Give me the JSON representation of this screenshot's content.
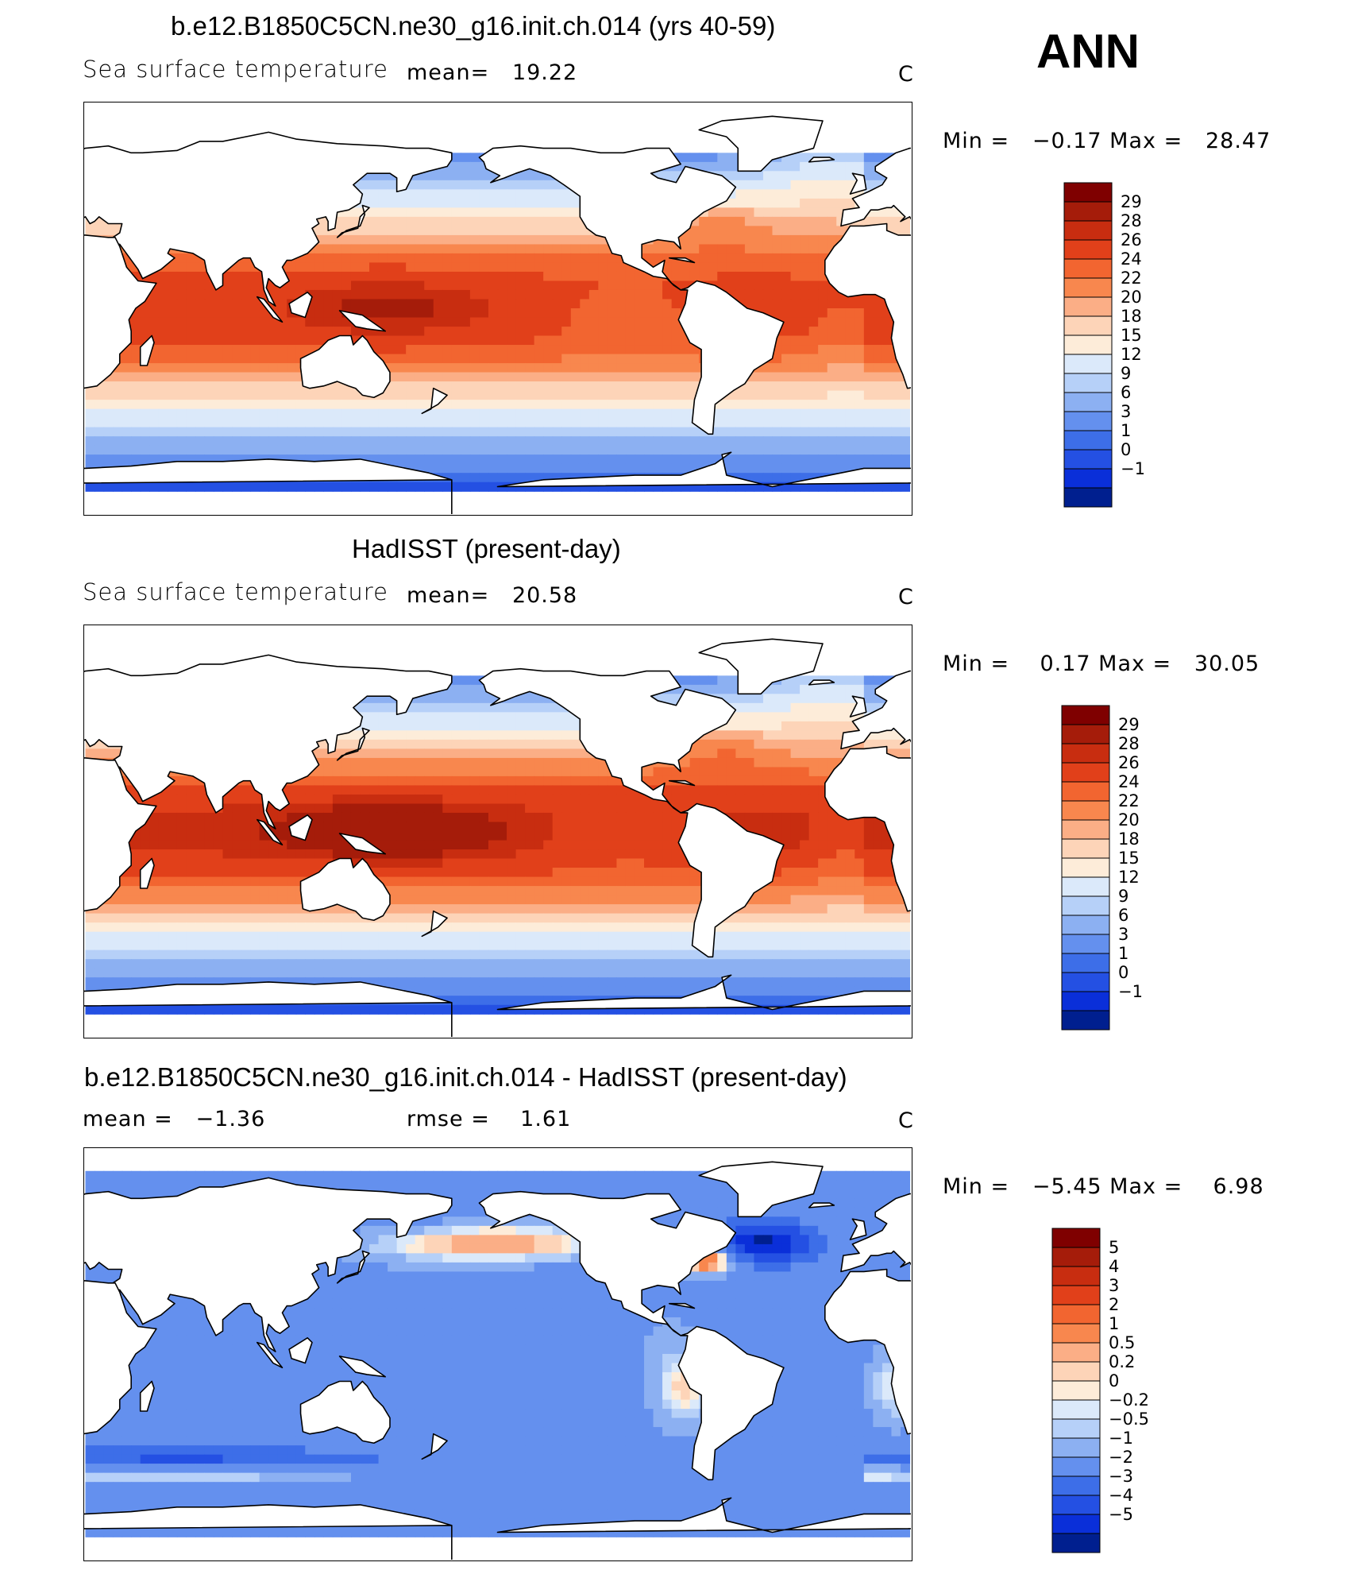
{
  "season": "ANN",
  "panels": [
    {
      "title": "b.e12.B1850C5CN.ne30_g16.init.ch.014 (yrs 40-59)",
      "left_label": "Sea surface temperature",
      "center_label": "mean=   19.22",
      "units": "C",
      "minmax": "Min =   −0.17 Max =   28.47",
      "legend_levels": [
        "29",
        "28",
        "26",
        "24",
        "22",
        "20",
        "18",
        "15",
        "12",
        "9",
        "6",
        "3",
        "1",
        "0",
        "−1"
      ],
      "legend_colors": [
        "#7f0000",
        "#a51c0a",
        "#c82d10",
        "#e1401a",
        "#f26530",
        "#f8874e",
        "#fbae86",
        "#fdd4b8",
        "#fdecd9",
        "#dbe9fa",
        "#b6d0f8",
        "#8cb0f2",
        "#6490ee",
        "#3d6ee8",
        "#2450e3",
        "#0a2fd9",
        "#001f8f"
      ],
      "chart_data": {
        "type": "heatmap",
        "title": "b.e12.B1850C5CN.ne30_g16.init.ch.014 (yrs 40-59)",
        "variable": "Sea surface temperature",
        "units": "C",
        "mean": 19.22,
        "min": -0.17,
        "max": 28.47,
        "contour_levels": [
          -1,
          0,
          1,
          3,
          6,
          9,
          12,
          15,
          18,
          20,
          22,
          24,
          26,
          28,
          29
        ]
      }
    },
    {
      "title": "HadISST (present-day)",
      "left_label": "Sea surface temperature",
      "center_label": "mean=   20.58",
      "units": "C",
      "minmax": "Min =    0.17 Max =   30.05",
      "legend_levels": [
        "29",
        "28",
        "26",
        "24",
        "22",
        "20",
        "18",
        "15",
        "12",
        "9",
        "6",
        "3",
        "1",
        "0",
        "−1"
      ],
      "legend_colors": [
        "#7f0000",
        "#a51c0a",
        "#c82d10",
        "#e1401a",
        "#f26530",
        "#f8874e",
        "#fbae86",
        "#fdd4b8",
        "#fdecd9",
        "#dbe9fa",
        "#b6d0f8",
        "#8cb0f2",
        "#6490ee",
        "#3d6ee8",
        "#2450e3",
        "#0a2fd9",
        "#001f8f"
      ],
      "chart_data": {
        "type": "heatmap",
        "title": "HadISST (present-day)",
        "variable": "Sea surface temperature",
        "units": "C",
        "mean": 20.58,
        "min": 0.17,
        "max": 30.05,
        "contour_levels": [
          -1,
          0,
          1,
          3,
          6,
          9,
          12,
          15,
          18,
          20,
          22,
          24,
          26,
          28,
          29
        ]
      }
    },
    {
      "title": "b.e12.B1850C5CN.ne30_g16.init.ch.014 - HadISST (present-day)",
      "left_label": "mean =   −1.36",
      "center_label": "rmse =    1.61",
      "units": "C",
      "minmax": "Min =   −5.45 Max =    6.98",
      "legend_levels": [
        "5",
        "4",
        "3",
        "2",
        "1",
        "0.5",
        "0.2",
        "0",
        "−0.2",
        "−0.5",
        "−1",
        "−2",
        "−3",
        "−4",
        "−5"
      ],
      "legend_colors": [
        "#7f0000",
        "#a51c0a",
        "#c82d10",
        "#e1401a",
        "#f26530",
        "#f8874e",
        "#fbae86",
        "#fdd4b8",
        "#fdecd9",
        "#dbe9fa",
        "#b6d0f8",
        "#8cb0f2",
        "#6490ee",
        "#3d6ee8",
        "#2450e3",
        "#0a2fd9",
        "#001f8f"
      ],
      "chart_data": {
        "type": "heatmap",
        "title": "b.e12.B1850C5CN.ne30_g16.init.ch.014 - HadISST (present-day)",
        "units": "C",
        "mean": -1.36,
        "rmse": 1.61,
        "min": -5.45,
        "max": 6.98,
        "contour_levels": [
          -5,
          -4,
          -3,
          -2,
          -1,
          -0.5,
          -0.2,
          0,
          0.2,
          0.5,
          1,
          2,
          3,
          4,
          5
        ]
      }
    }
  ]
}
